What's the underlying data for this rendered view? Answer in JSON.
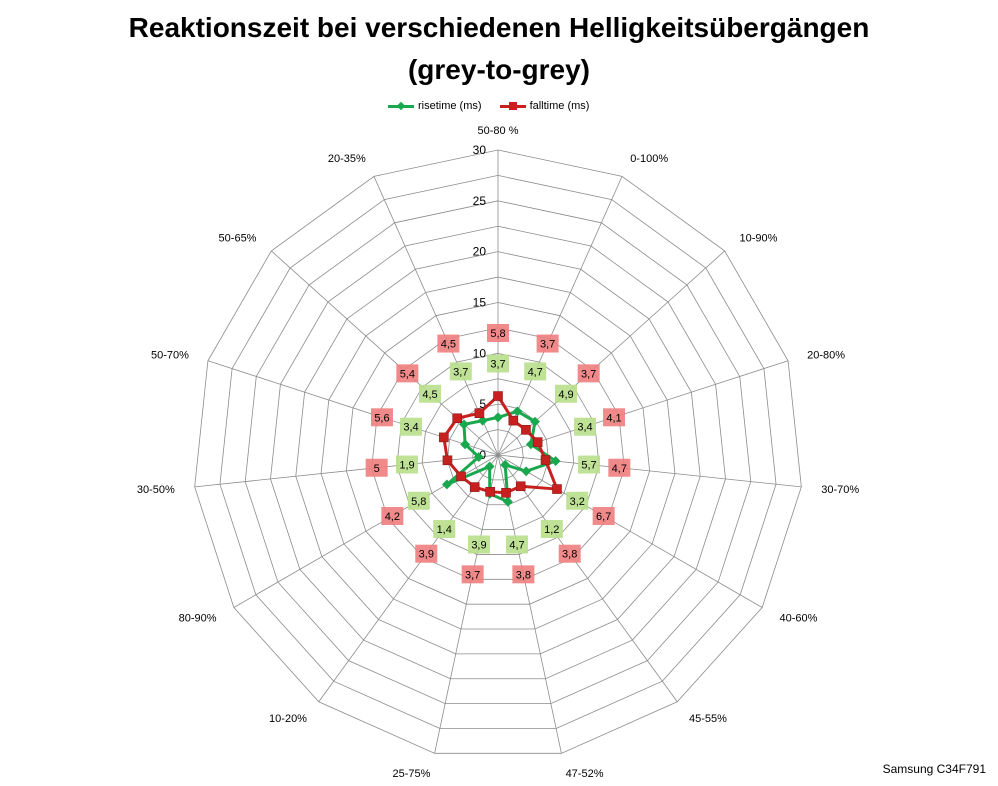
{
  "title_line1": "Reaktionszeit bei verschiedenen Helligkeitsübergängen",
  "title_line2": "(grey-to-grey)",
  "footer_label": "Samsung C34F791",
  "colors": {
    "rise": "#1aa84f",
    "fall": "#c8201e",
    "rise_label_bg": "#b8df8c",
    "fall_label_bg": "#f07e7e",
    "grid": "#8c8c8c"
  },
  "chart_data": {
    "type": "radar",
    "title": "Reaktionszeit bei verschiedenen Helligkeitsübergängen (grey-to-grey)",
    "categories": [
      "50-80 %",
      "0-100%",
      "10-90%",
      "20-80%",
      "30-70%",
      "40-60%",
      "45-55%",
      "47-52%",
      "25-75%",
      "10-20%",
      "80-90%",
      "30-50%",
      "50-70%",
      "50-65%",
      "20-35%"
    ],
    "range": [
      0,
      30
    ],
    "ticks": [
      "0",
      "5",
      "10",
      "15",
      "20",
      "25",
      "30"
    ],
    "grid": true,
    "legend_position": "top",
    "series": [
      {
        "name": "risetime (ms)",
        "values": [
          3.7,
          4.7,
          4.9,
          3.4,
          5.7,
          3.2,
          1.2,
          4.7,
          3.9,
          1.4,
          5.8,
          1.9,
          3.4,
          4.5,
          3.7
        ],
        "labels": [
          "3,7",
          "4,7",
          "4,9",
          "3,4",
          "5,7",
          "3,2",
          "1,2",
          "4,7",
          "3,9",
          "1,4",
          "5,8",
          "1,9",
          "3,4",
          "4,5",
          "3,7"
        ]
      },
      {
        "name": "falltime (ms)",
        "values": [
          5.8,
          3.7,
          3.7,
          4.1,
          4.7,
          6.7,
          3.8,
          3.8,
          3.7,
          3.9,
          4.2,
          5,
          5.6,
          5.4,
          4.5
        ],
        "labels": [
          "5,8",
          "3,7",
          "3,7",
          "4,1",
          "4,7",
          "6,7",
          "3,8",
          "3,8",
          "3,7",
          "3,9",
          "4,2",
          "5",
          "5,6",
          "5,4",
          "4,5"
        ]
      }
    ]
  }
}
